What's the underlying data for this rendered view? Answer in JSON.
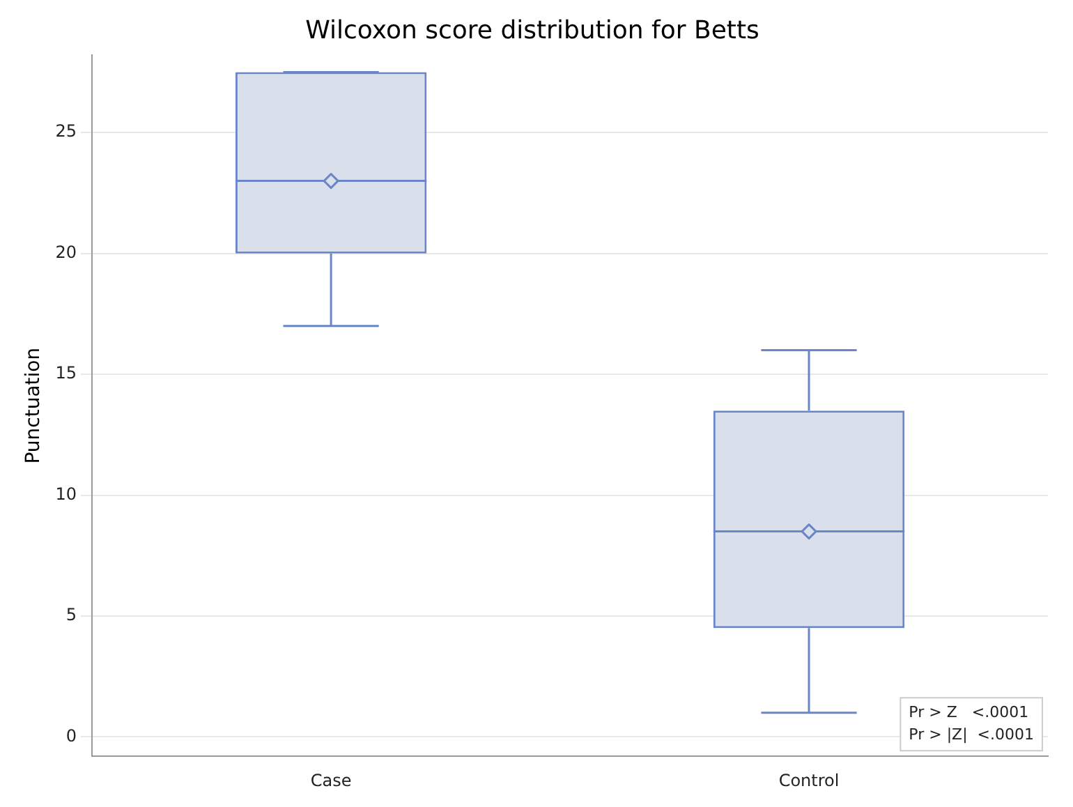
{
  "chart_data": {
    "type": "box",
    "title": "Wilcoxon score distribution for Betts",
    "ylabel": "Punctuation",
    "categories": [
      "Case",
      "Control"
    ],
    "boxes": [
      {
        "low": 17,
        "q1": 20,
        "median": 23,
        "q3": 27.5,
        "high": 27.5,
        "mean": 23
      },
      {
        "low": 1,
        "q1": 4.5,
        "median": 8.5,
        "q3": 13.5,
        "high": 16,
        "mean": 8.5
      }
    ],
    "color": "#6a86c8",
    "ylim": [
      -0.8,
      28.2
    ],
    "yticks": [
      0,
      5,
      10,
      15,
      20,
      25
    ],
    "grid": "y",
    "legend": false,
    "marker": "diamond",
    "annotations": [
      "Pr > Z   <.0001",
      "Pr > |Z|  <.0001"
    ]
  }
}
